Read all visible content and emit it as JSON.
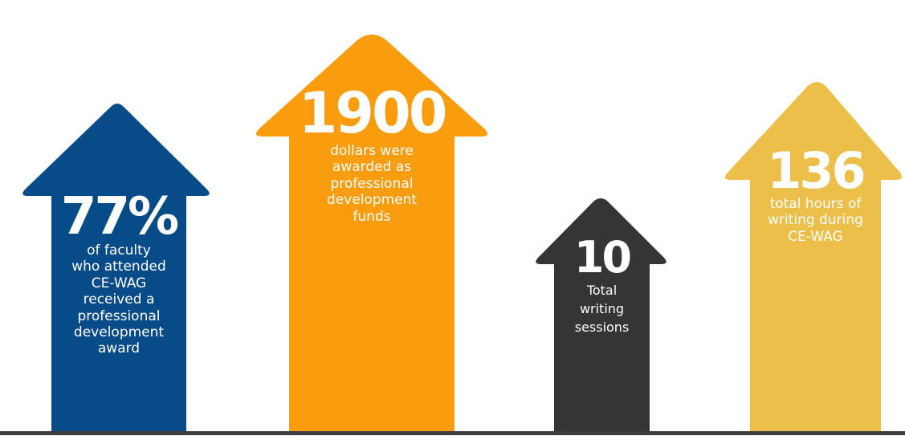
{
  "colors": {
    "blue": "#084b89",
    "orange": "#f99c0d",
    "dark": "#363436",
    "yellow": "#ecbf4b",
    "baseline": "#3d3d3f"
  },
  "stats": [
    {
      "name": "faculty-award",
      "value": "77%",
      "lines": [
        "of faculty",
        "who attended",
        "CE-WAG",
        "received a",
        "professional",
        "development",
        "award"
      ]
    },
    {
      "name": "dollars-awarded",
      "value": "1900",
      "lines": [
        "dollars were",
        "awarded as",
        "professional",
        "development",
        "funds"
      ]
    },
    {
      "name": "writing-sessions",
      "value": "10",
      "lines": [
        "Total",
        "writing",
        "sessions"
      ]
    },
    {
      "name": "writing-hours",
      "value": "136",
      "lines": [
        "total hours of",
        "writing during",
        "CE-WAG"
      ]
    }
  ]
}
